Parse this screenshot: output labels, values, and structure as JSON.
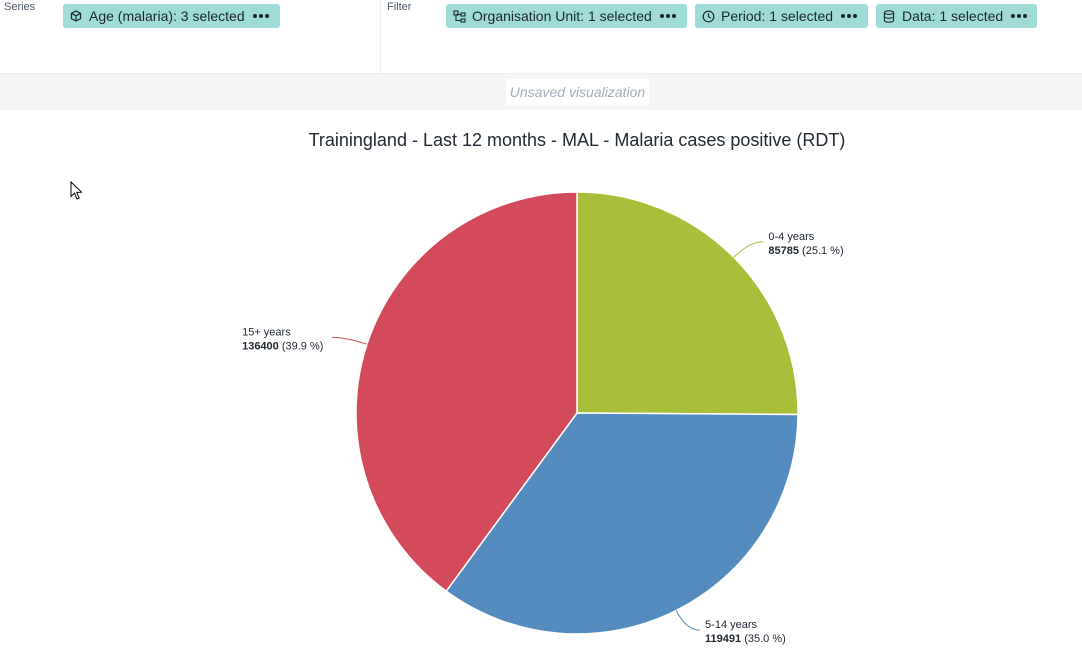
{
  "layout": {
    "series": {
      "label": "Series",
      "chips": [
        {
          "label": "Age (malaria): 3 selected",
          "icon": "category-icon"
        }
      ]
    },
    "filter": {
      "label": "Filter",
      "chips": [
        {
          "label": "Organisation Unit: 1 selected",
          "icon": "org-unit-icon"
        },
        {
          "label": "Period: 1 selected",
          "icon": "clock-icon"
        },
        {
          "label": "Data: 1 selected",
          "icon": "database-icon"
        }
      ]
    }
  },
  "visualization_status": "Unsaved visualization",
  "chart_data": {
    "type": "pie",
    "title": "Trainingland - Last 12 months - MAL - Malaria cases positive (RDT)",
    "slices": [
      {
        "label": "0-4 years",
        "value": 85785,
        "percent_text": "(25.1 %)",
        "color": "#a9bf3c"
      },
      {
        "label": "5-14 years",
        "value": 119491,
        "percent_text": "(35.0 %)",
        "color": "#558cc0"
      },
      {
        "label": "15+ years",
        "value": 136400,
        "percent_text": "(39.9 %)",
        "color": "#d34a5a"
      }
    ],
    "legend": "none",
    "data_labels": "outside"
  }
}
